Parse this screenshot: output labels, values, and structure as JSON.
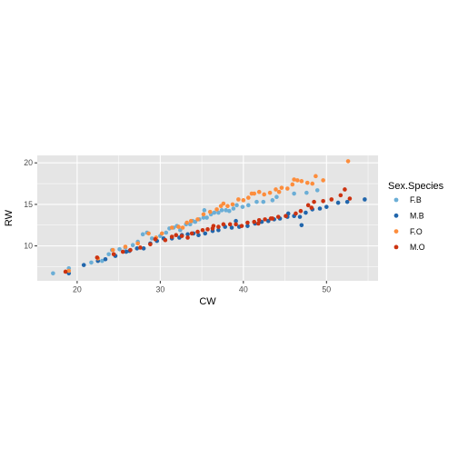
{
  "chart_data": {
    "type": "scatter",
    "xlabel": "CW",
    "ylabel": "RW",
    "xlim": [
      15.2,
      56.2
    ],
    "ylim": [
      5.8,
      20.9
    ],
    "x_ticks": [
      20,
      30,
      40,
      50
    ],
    "y_ticks": [
      10,
      15,
      20
    ],
    "grid": true,
    "background": "#e5e5e5",
    "grid_color": "#ffffff",
    "legend": {
      "title": "Sex.Species",
      "placement": "right",
      "entries": [
        "F.B",
        "M.B",
        "F.O",
        "M.O"
      ]
    },
    "series": [
      {
        "name": "F.B",
        "color": "#6baed6",
        "points": [
          [
            17.1,
            6.7
          ],
          [
            19.0,
            7.3
          ],
          [
            21.7,
            8.0
          ],
          [
            23.0,
            8.2
          ],
          [
            23.8,
            9.0
          ],
          [
            24.2,
            9.5
          ],
          [
            25.1,
            9.6
          ],
          [
            25.8,
            9.8
          ],
          [
            26.7,
            10.1
          ],
          [
            27.3,
            10.5
          ],
          [
            27.9,
            11.4
          ],
          [
            28.4,
            11.6
          ],
          [
            29.0,
            10.9
          ],
          [
            30.0,
            11.2
          ],
          [
            30.7,
            11.6
          ],
          [
            31.1,
            12.1
          ],
          [
            31.6,
            12.2
          ],
          [
            32.0,
            12.4
          ],
          [
            32.4,
            11.9
          ],
          [
            33.1,
            12.6
          ],
          [
            33.6,
            12.6
          ],
          [
            34.2,
            12.9
          ],
          [
            34.7,
            13.2
          ],
          [
            35.2,
            13.4
          ],
          [
            35.6,
            13.4
          ],
          [
            36.1,
            13.8
          ],
          [
            36.5,
            14.0
          ],
          [
            37.0,
            14.0
          ],
          [
            37.4,
            14.3
          ],
          [
            37.9,
            14.3
          ],
          [
            38.3,
            14.2
          ],
          [
            38.8,
            14.5
          ],
          [
            39.2,
            14.9
          ],
          [
            39.9,
            14.7
          ],
          [
            40.6,
            14.9
          ],
          [
            41.6,
            15.3
          ],
          [
            42.4,
            15.3
          ],
          [
            43.5,
            15.5
          ],
          [
            44.0,
            15.9
          ],
          [
            46.1,
            16.3
          ],
          [
            47.6,
            16.4
          ],
          [
            48.9,
            16.7
          ],
          [
            35.3,
            14.3
          ],
          [
            33.9,
            13.0
          ]
        ]
      },
      {
        "name": "M.B",
        "color": "#2166ac",
        "points": [
          [
            19.0,
            6.7
          ],
          [
            20.8,
            7.7
          ],
          [
            22.5,
            8.2
          ],
          [
            23.4,
            8.4
          ],
          [
            24.6,
            8.8
          ],
          [
            25.9,
            9.3
          ],
          [
            26.3,
            9.4
          ],
          [
            27.2,
            9.7
          ],
          [
            28.0,
            9.7
          ],
          [
            28.8,
            10.3
          ],
          [
            29.6,
            10.6
          ],
          [
            30.4,
            10.9
          ],
          [
            31.4,
            10.9
          ],
          [
            32.3,
            11.0
          ],
          [
            32.6,
            11.3
          ],
          [
            33.3,
            11.4
          ],
          [
            34.0,
            11.5
          ],
          [
            34.6,
            11.3
          ],
          [
            35.4,
            11.5
          ],
          [
            36.3,
            11.8
          ],
          [
            37.0,
            11.9
          ],
          [
            37.8,
            12.3
          ],
          [
            38.6,
            12.2
          ],
          [
            39.5,
            12.3
          ],
          [
            40.5,
            12.4
          ],
          [
            41.4,
            12.7
          ],
          [
            42.2,
            12.9
          ],
          [
            43.0,
            13.0
          ],
          [
            43.7,
            13.2
          ],
          [
            44.4,
            13.3
          ],
          [
            45.3,
            13.5
          ],
          [
            46.1,
            13.6
          ],
          [
            46.8,
            13.5
          ],
          [
            47.5,
            14.0
          ],
          [
            48.3,
            14.4
          ],
          [
            49.2,
            14.5
          ],
          [
            50.0,
            14.7
          ],
          [
            51.4,
            15.2
          ],
          [
            52.5,
            15.3
          ],
          [
            54.6,
            15.6
          ],
          [
            47.0,
            12.5
          ],
          [
            45.4,
            13.9
          ],
          [
            39.1,
            13.0
          ]
        ]
      },
      {
        "name": "F.O",
        "color": "#fd8d3c",
        "points": [
          [
            19.0,
            7.0
          ],
          [
            22.5,
            8.5
          ],
          [
            24.3,
            9.5
          ],
          [
            25.8,
            9.9
          ],
          [
            27.3,
            10.3
          ],
          [
            28.6,
            11.5
          ],
          [
            29.5,
            11.0
          ],
          [
            30.2,
            11.5
          ],
          [
            31.4,
            12.2
          ],
          [
            32.2,
            12.3
          ],
          [
            33.2,
            12.8
          ],
          [
            33.7,
            13.0
          ],
          [
            34.5,
            13.2
          ],
          [
            35.2,
            13.8
          ],
          [
            36.0,
            14.1
          ],
          [
            36.8,
            14.4
          ],
          [
            37.3,
            14.8
          ],
          [
            38.1,
            14.8
          ],
          [
            38.7,
            15.0
          ],
          [
            39.4,
            15.6
          ],
          [
            40.0,
            15.5
          ],
          [
            40.6,
            15.8
          ],
          [
            41.3,
            16.3
          ],
          [
            41.9,
            16.5
          ],
          [
            42.5,
            16.2
          ],
          [
            43.2,
            16.4
          ],
          [
            43.9,
            16.8
          ],
          [
            44.6,
            17.0
          ],
          [
            45.3,
            16.9
          ],
          [
            45.9,
            17.4
          ],
          [
            46.5,
            17.9
          ],
          [
            47.0,
            17.8
          ],
          [
            47.7,
            17.6
          ],
          [
            48.3,
            17.5
          ],
          [
            48.7,
            18.4
          ],
          [
            49.6,
            17.9
          ],
          [
            52.6,
            20.2
          ],
          [
            41.0,
            16.3
          ],
          [
            37.6,
            15.1
          ],
          [
            32.7,
            12.2
          ],
          [
            44.3,
            16.5
          ],
          [
            46.1,
            18.0
          ]
        ]
      },
      {
        "name": "M.O",
        "color": "#cc3311",
        "points": [
          [
            18.6,
            6.9
          ],
          [
            22.4,
            8.6
          ],
          [
            24.4,
            9.0
          ],
          [
            25.5,
            9.3
          ],
          [
            26.4,
            9.5
          ],
          [
            27.6,
            9.8
          ],
          [
            28.8,
            10.2
          ],
          [
            29.4,
            10.8
          ],
          [
            30.6,
            10.7
          ],
          [
            31.4,
            11.1
          ],
          [
            31.9,
            11.3
          ],
          [
            32.6,
            11.2
          ],
          [
            33.3,
            11.0
          ],
          [
            33.8,
            11.5
          ],
          [
            34.5,
            11.7
          ],
          [
            35.1,
            11.9
          ],
          [
            35.7,
            12.0
          ],
          [
            36.3,
            12.1
          ],
          [
            37.0,
            12.3
          ],
          [
            37.6,
            12.6
          ],
          [
            38.4,
            12.6
          ],
          [
            39.1,
            12.6
          ],
          [
            39.8,
            12.4
          ],
          [
            40.5,
            12.8
          ],
          [
            41.3,
            12.9
          ],
          [
            41.9,
            13.1
          ],
          [
            42.6,
            13.2
          ],
          [
            43.3,
            13.3
          ],
          [
            44.2,
            13.5
          ],
          [
            45.1,
            13.6
          ],
          [
            46.3,
            13.9
          ],
          [
            46.9,
            14.2
          ],
          [
            47.8,
            14.9
          ],
          [
            48.5,
            15.3
          ],
          [
            49.6,
            15.4
          ],
          [
            50.6,
            15.6
          ],
          [
            51.7,
            16.1
          ],
          [
            52.2,
            16.8
          ],
          [
            52.8,
            15.7
          ],
          [
            41.8,
            12.7
          ],
          [
            36.4,
            12.4
          ],
          [
            43.5,
            13.3
          ],
          [
            48.2,
            14.6
          ]
        ]
      }
    ]
  }
}
